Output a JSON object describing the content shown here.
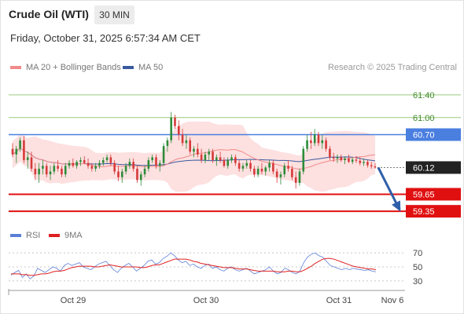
{
  "header": {
    "title": "Crude Oil (WTI)",
    "timeframe": "30 MIN"
  },
  "timestamp": "Friday, October 31, 2025 6:57:34 AM CET",
  "legend": {
    "ma20_label": "MA 20 + Bollinger Bands",
    "ma50_label": "MA 50",
    "copyright": "Research © 2025 Trading Central"
  },
  "rsi_legend": {
    "rsi_label": "RSI",
    "ma_label": "9MA"
  },
  "colors": {
    "up": "#2e8b3a",
    "down": "#d63a3a",
    "ma20": "#f28a8a",
    "bollinger_fill": "#fde0e0",
    "ma50": "#3a5aa0",
    "resistance": "#9acb7a",
    "pivot": "#4a7fe0",
    "support": "#e01010",
    "current": "#222222",
    "rsi": "#5b7fd6",
    "rsi_ma": "#e02020",
    "arrow": "#2f5fa8"
  },
  "chart_data": [
    {
      "type": "candlestick",
      "panel": "price",
      "ylim": [
        59.2,
        61.55
      ],
      "x_ticks": [
        "Oct 29",
        "Oct 30",
        "Oct 31",
        "Nov 6"
      ],
      "levels": [
        {
          "label": "61.40",
          "value": 61.4,
          "kind": "resistance"
        },
        {
          "label": "61.00",
          "value": 61.0,
          "kind": "resistance"
        },
        {
          "label": "60.70",
          "value": 60.7,
          "kind": "pivot"
        },
        {
          "label": "60.12",
          "value": 60.12,
          "kind": "current"
        },
        {
          "label": "59.65",
          "value": 59.65,
          "kind": "support"
        },
        {
          "label": "59.35",
          "value": 59.35,
          "kind": "support"
        }
      ],
      "ohlc": [
        [
          60.45,
          60.55,
          60.3,
          60.35
        ],
        [
          60.35,
          60.5,
          60.2,
          60.45
        ],
        [
          60.45,
          60.65,
          60.4,
          60.6
        ],
        [
          60.6,
          60.68,
          60.2,
          60.25
        ],
        [
          60.25,
          60.4,
          60.1,
          60.3
        ],
        [
          60.3,
          60.4,
          60.05,
          60.1
        ],
        [
          60.1,
          60.2,
          59.9,
          60.0
        ],
        [
          60.0,
          60.2,
          59.85,
          60.1
        ],
        [
          60.1,
          60.25,
          60.0,
          60.15
        ],
        [
          60.15,
          60.2,
          59.95,
          60.0
        ],
        [
          60.0,
          60.15,
          59.9,
          60.05
        ],
        [
          60.05,
          60.2,
          60.0,
          60.15
        ],
        [
          60.15,
          60.25,
          60.05,
          60.1
        ],
        [
          60.1,
          60.15,
          59.95,
          60.0
        ],
        [
          60.0,
          60.2,
          59.95,
          60.15
        ],
        [
          60.15,
          60.25,
          60.1,
          60.2
        ],
        [
          60.2,
          60.28,
          60.12,
          60.15
        ],
        [
          60.15,
          60.25,
          60.1,
          60.22
        ],
        [
          60.22,
          60.3,
          60.15,
          60.25
        ],
        [
          60.25,
          60.32,
          60.18,
          60.2
        ],
        [
          60.2,
          60.28,
          60.1,
          60.15
        ],
        [
          60.15,
          60.2,
          60.05,
          60.1
        ],
        [
          60.1,
          60.2,
          60.05,
          60.15
        ],
        [
          60.15,
          60.25,
          60.1,
          60.2
        ],
        [
          60.2,
          60.3,
          60.15,
          60.25
        ],
        [
          60.25,
          60.35,
          60.2,
          60.3
        ],
        [
          60.3,
          60.35,
          60.15,
          60.2
        ],
        [
          60.2,
          60.25,
          60.0,
          60.05
        ],
        [
          60.05,
          60.15,
          59.88,
          59.95
        ],
        [
          59.95,
          60.1,
          59.85,
          60.05
        ],
        [
          60.05,
          60.2,
          60.0,
          60.15
        ],
        [
          60.15,
          60.28,
          60.1,
          60.22
        ],
        [
          60.22,
          60.28,
          60.05,
          60.1
        ],
        [
          60.1,
          60.15,
          59.85,
          59.9
        ],
        [
          59.9,
          60.05,
          59.8,
          60.0
        ],
        [
          60.0,
          60.15,
          59.95,
          60.1
        ],
        [
          60.1,
          60.3,
          60.05,
          60.25
        ],
        [
          60.25,
          60.35,
          60.2,
          60.3
        ],
        [
          60.3,
          60.35,
          60.1,
          60.15
        ],
        [
          60.15,
          60.25,
          60.05,
          60.2
        ],
        [
          60.2,
          60.55,
          60.15,
          60.5
        ],
        [
          60.5,
          60.65,
          60.4,
          60.6
        ],
        [
          60.6,
          61.1,
          60.55,
          61.0
        ],
        [
          61.0,
          61.05,
          60.8,
          60.85
        ],
        [
          60.85,
          60.95,
          60.6,
          60.7
        ],
        [
          60.7,
          60.8,
          60.5,
          60.55
        ],
        [
          60.55,
          60.7,
          60.45,
          60.6
        ],
        [
          60.6,
          60.65,
          60.35,
          60.4
        ],
        [
          60.4,
          60.5,
          60.3,
          60.45
        ],
        [
          60.45,
          60.55,
          60.3,
          60.35
        ],
        [
          60.35,
          60.45,
          60.2,
          60.25
        ],
        [
          60.25,
          60.4,
          60.2,
          60.35
        ],
        [
          60.35,
          60.45,
          60.25,
          60.4
        ],
        [
          60.4,
          60.45,
          60.2,
          60.25
        ],
        [
          60.25,
          60.35,
          60.15,
          60.3
        ],
        [
          60.3,
          60.4,
          60.2,
          60.25
        ],
        [
          60.25,
          60.3,
          60.12,
          60.15
        ],
        [
          60.15,
          60.3,
          60.1,
          60.25
        ],
        [
          60.25,
          60.35,
          60.2,
          60.3
        ],
        [
          60.3,
          60.35,
          60.15,
          60.2
        ],
        [
          60.2,
          60.25,
          60.05,
          60.1
        ],
        [
          60.1,
          60.2,
          60.05,
          60.15
        ],
        [
          60.15,
          60.25,
          60.1,
          60.2
        ],
        [
          60.2,
          60.25,
          60.05,
          60.1
        ],
        [
          60.1,
          60.15,
          59.95,
          60.0
        ],
        [
          60.0,
          60.15,
          59.95,
          60.1
        ],
        [
          60.1,
          60.2,
          60.0,
          60.05
        ],
        [
          60.05,
          60.15,
          59.98,
          60.12
        ],
        [
          60.12,
          60.25,
          60.05,
          60.2
        ],
        [
          60.2,
          60.25,
          60.0,
          60.05
        ],
        [
          60.05,
          60.1,
          59.85,
          59.95
        ],
        [
          59.95,
          60.05,
          59.82,
          60.0
        ],
        [
          60.0,
          60.2,
          59.95,
          60.15
        ],
        [
          60.15,
          60.25,
          60.05,
          60.1
        ],
        [
          60.1,
          60.15,
          59.9,
          59.95
        ],
        [
          59.95,
          60.05,
          59.75,
          59.85
        ],
        [
          59.85,
          60.1,
          59.8,
          60.05
        ],
        [
          60.05,
          60.5,
          60.0,
          60.45
        ],
        [
          60.45,
          60.7,
          60.4,
          60.6
        ],
        [
          60.6,
          60.75,
          60.45,
          60.55
        ],
        [
          60.55,
          60.8,
          60.5,
          60.7
        ],
        [
          60.7,
          60.75,
          60.5,
          60.55
        ],
        [
          60.55,
          60.7,
          60.45,
          60.6
        ],
        [
          60.6,
          60.65,
          60.4,
          60.45
        ],
        [
          60.45,
          60.5,
          60.25,
          60.3
        ],
        [
          60.3,
          60.38,
          60.22,
          60.28
        ],
        [
          60.28,
          60.35,
          60.2,
          60.3
        ],
        [
          60.3,
          60.35,
          60.22,
          60.25
        ],
        [
          60.25,
          60.32,
          60.18,
          60.28
        ],
        [
          60.28,
          60.35,
          60.2,
          60.22
        ],
        [
          60.22,
          60.3,
          60.18,
          60.26
        ],
        [
          60.26,
          60.32,
          60.2,
          60.24
        ],
        [
          60.24,
          60.3,
          60.16,
          60.2
        ],
        [
          60.2,
          60.28,
          60.15,
          60.22
        ],
        [
          60.22,
          60.25,
          60.12,
          60.16
        ],
        [
          60.16,
          60.22,
          60.1,
          60.14
        ],
        [
          60.14,
          60.2,
          60.1,
          60.12
        ]
      ]
    },
    {
      "type": "line",
      "panel": "rsi",
      "ylim": [
        22,
        78
      ],
      "y_ticks": [
        70,
        50,
        30
      ],
      "series": [
        {
          "name": "RSI",
          "values": [
            38,
            42,
            45,
            35,
            40,
            33,
            37,
            48,
            45,
            42,
            46,
            50,
            48,
            44,
            52,
            55,
            52,
            54,
            56,
            50,
            48,
            46,
            50,
            54,
            56,
            58,
            52,
            46,
            42,
            48,
            52,
            55,
            50,
            44,
            48,
            52,
            58,
            60,
            54,
            56,
            62,
            65,
            70,
            66,
            60,
            56,
            58,
            52,
            54,
            50,
            48,
            52,
            54,
            48,
            50,
            46,
            44,
            48,
            50,
            46,
            44,
            46,
            48,
            44,
            40,
            42,
            44,
            46,
            50,
            44,
            40,
            42,
            48,
            46,
            42,
            40,
            44,
            56,
            64,
            68,
            70,
            66,
            64,
            58,
            52,
            50,
            48,
            46,
            48,
            46,
            48,
            47,
            46,
            45,
            46,
            44,
            43
          ]
        },
        {
          "name": "9MA",
          "values": [
            40,
            40,
            40,
            39,
            39,
            38,
            38,
            39,
            40,
            40,
            41,
            43,
            44,
            44,
            45,
            47,
            49,
            50,
            51,
            51,
            51,
            51,
            50,
            50,
            51,
            52,
            53,
            52,
            51,
            50,
            50,
            50,
            50,
            50,
            49,
            49,
            50,
            52,
            53,
            53,
            55,
            57,
            59,
            61,
            61,
            61,
            61,
            60,
            58,
            57,
            55,
            54,
            53,
            52,
            51,
            50,
            49,
            49,
            49,
            48,
            47,
            47,
            47,
            46,
            45,
            44,
            44,
            44,
            44,
            44,
            43,
            43,
            43,
            44,
            44,
            43,
            43,
            45,
            48,
            51,
            55,
            58,
            61,
            62,
            62,
            61,
            59,
            57,
            55,
            53,
            51,
            50,
            49,
            48,
            47,
            47,
            46
          ]
        }
      ]
    }
  ]
}
